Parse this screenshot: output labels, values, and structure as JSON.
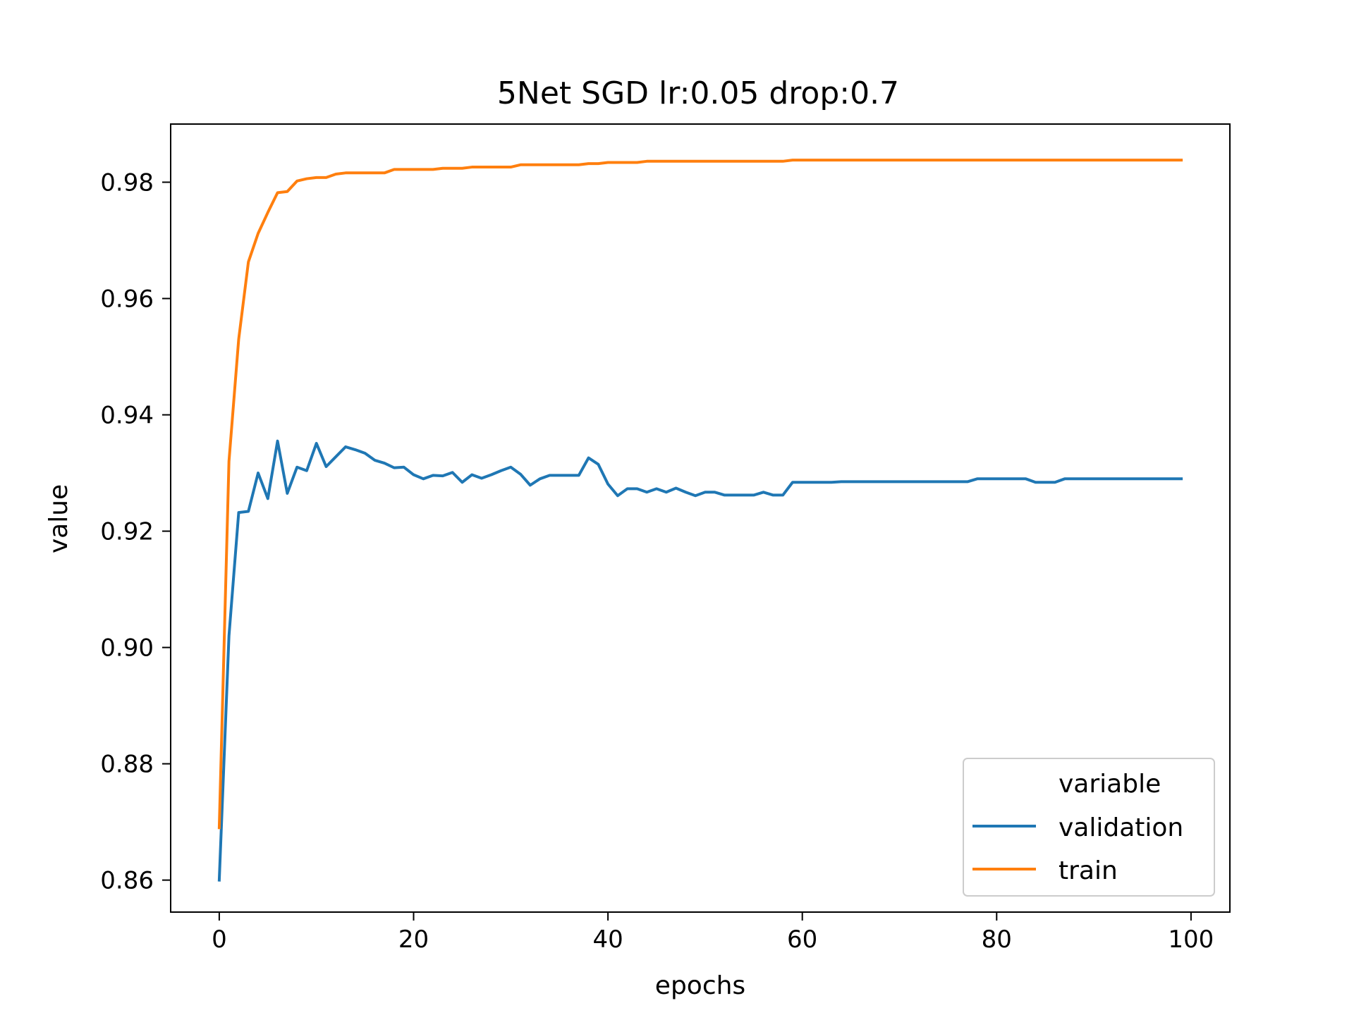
{
  "chart_data": {
    "type": "line",
    "title": "5Net SGD lr:0.05 drop:0.7",
    "xlabel": "epochs",
    "ylabel": "value",
    "xlim": [
      -5,
      104
    ],
    "ylim": [
      0.8545,
      0.99
    ],
    "xticks": [
      0,
      20,
      40,
      60,
      80,
      100
    ],
    "xtick_labels": [
      "0",
      "20",
      "40",
      "60",
      "80",
      "100"
    ],
    "yticks": [
      0.86,
      0.88,
      0.9,
      0.92,
      0.94,
      0.96,
      0.98
    ],
    "ytick_labels": [
      "0.86",
      "0.88",
      "0.90",
      "0.92",
      "0.94",
      "0.96",
      "0.98"
    ],
    "grid": false,
    "legend": {
      "title": "variable",
      "position": "lower-right"
    },
    "series": [
      {
        "name": "validation",
        "color": "#1f77b4",
        "x": [
          0,
          1,
          2,
          3,
          4,
          5,
          6,
          7,
          8,
          9,
          10,
          11,
          12,
          13,
          14,
          15,
          16,
          17,
          18,
          19,
          20,
          21,
          22,
          23,
          24,
          25,
          26,
          27,
          28,
          29,
          30,
          31,
          32,
          33,
          34,
          35,
          36,
          37,
          38,
          39,
          40,
          41,
          42,
          43,
          44,
          45,
          46,
          47,
          48,
          49,
          50,
          51,
          52,
          53,
          54,
          55,
          56,
          57,
          58,
          59,
          60,
          61,
          62,
          63,
          64,
          65,
          66,
          67,
          68,
          69,
          70,
          71,
          72,
          73,
          74,
          75,
          76,
          77,
          78,
          79,
          80,
          81,
          82,
          83,
          84,
          85,
          86,
          87,
          88,
          89,
          90,
          91,
          92,
          93,
          94,
          95,
          96,
          97,
          98,
          99
        ],
        "y": [
          0.86,
          0.902,
          0.9232,
          0.9234,
          0.93,
          0.9256,
          0.9355,
          0.9265,
          0.931,
          0.9304,
          0.9351,
          0.9311,
          0.9328,
          0.9345,
          0.934,
          0.9334,
          0.9322,
          0.9317,
          0.9309,
          0.931,
          0.9297,
          0.929,
          0.9296,
          0.9295,
          0.9301,
          0.9284,
          0.9297,
          0.9291,
          0.9297,
          0.9304,
          0.931,
          0.9298,
          0.9279,
          0.929,
          0.9296,
          0.9296,
          0.9296,
          0.9296,
          0.9326,
          0.9315,
          0.9281,
          0.9261,
          0.9273,
          0.9273,
          0.9267,
          0.9273,
          0.9267,
          0.9274,
          0.9267,
          0.9261,
          0.9267,
          0.9267,
          0.9262,
          0.9262,
          0.9262,
          0.9262,
          0.9267,
          0.9262,
          0.9262,
          0.9284,
          0.9284,
          0.9284,
          0.9284,
          0.9284,
          0.9285,
          0.9285,
          0.9285,
          0.9285,
          0.9285,
          0.9285,
          0.9285,
          0.9285,
          0.9285,
          0.9285,
          0.9285,
          0.9285,
          0.9285,
          0.9285,
          0.929,
          0.929,
          0.929,
          0.929,
          0.929,
          0.929,
          0.9284,
          0.9284,
          0.9284,
          0.929,
          0.929,
          0.929,
          0.929,
          0.929,
          0.929,
          0.929,
          0.929,
          0.929,
          0.929,
          0.929,
          0.929,
          0.929
        ]
      },
      {
        "name": "train",
        "color": "#ff7f0e",
        "x": [
          0,
          1,
          2,
          3,
          4,
          5,
          6,
          7,
          8,
          9,
          10,
          11,
          12,
          13,
          14,
          15,
          16,
          17,
          18,
          19,
          20,
          21,
          22,
          23,
          24,
          25,
          26,
          27,
          28,
          29,
          30,
          31,
          32,
          33,
          34,
          35,
          36,
          37,
          38,
          39,
          40,
          41,
          42,
          43,
          44,
          45,
          46,
          47,
          48,
          49,
          50,
          51,
          52,
          53,
          54,
          55,
          56,
          57,
          58,
          59,
          60,
          61,
          62,
          63,
          64,
          65,
          66,
          67,
          68,
          69,
          70,
          71,
          72,
          73,
          74,
          75,
          76,
          77,
          78,
          79,
          80,
          81,
          82,
          83,
          84,
          85,
          86,
          87,
          88,
          89,
          90,
          91,
          92,
          93,
          94,
          95,
          96,
          97,
          98,
          99
        ],
        "y": [
          0.869,
          0.932,
          0.953,
          0.9663,
          0.9712,
          0.9748,
          0.9782,
          0.9784,
          0.9802,
          0.9806,
          0.9808,
          0.9808,
          0.9814,
          0.9816,
          0.9816,
          0.9816,
          0.9816,
          0.9816,
          0.9822,
          0.9822,
          0.9822,
          0.9822,
          0.9822,
          0.9824,
          0.9824,
          0.9824,
          0.9826,
          0.9826,
          0.9826,
          0.9826,
          0.9826,
          0.983,
          0.983,
          0.983,
          0.983,
          0.983,
          0.983,
          0.983,
          0.9832,
          0.9832,
          0.9834,
          0.9834,
          0.9834,
          0.9834,
          0.9836,
          0.9836,
          0.9836,
          0.9836,
          0.9836,
          0.9836,
          0.9836,
          0.9836,
          0.9836,
          0.9836,
          0.9836,
          0.9836,
          0.9836,
          0.9836,
          0.9836,
          0.9838,
          0.9838,
          0.9838,
          0.9838,
          0.9838,
          0.9838,
          0.9838,
          0.9838,
          0.9838,
          0.9838,
          0.9838,
          0.9838,
          0.9838,
          0.9838,
          0.9838,
          0.9838,
          0.9838,
          0.9838,
          0.9838,
          0.9838,
          0.9838,
          0.9838,
          0.9838,
          0.9838,
          0.9838,
          0.9838,
          0.9838,
          0.9838,
          0.9838,
          0.9838,
          0.9838,
          0.9838,
          0.9838,
          0.9838,
          0.9838,
          0.9838,
          0.9838,
          0.9838,
          0.9838,
          0.9838,
          0.9838
        ]
      }
    ]
  }
}
